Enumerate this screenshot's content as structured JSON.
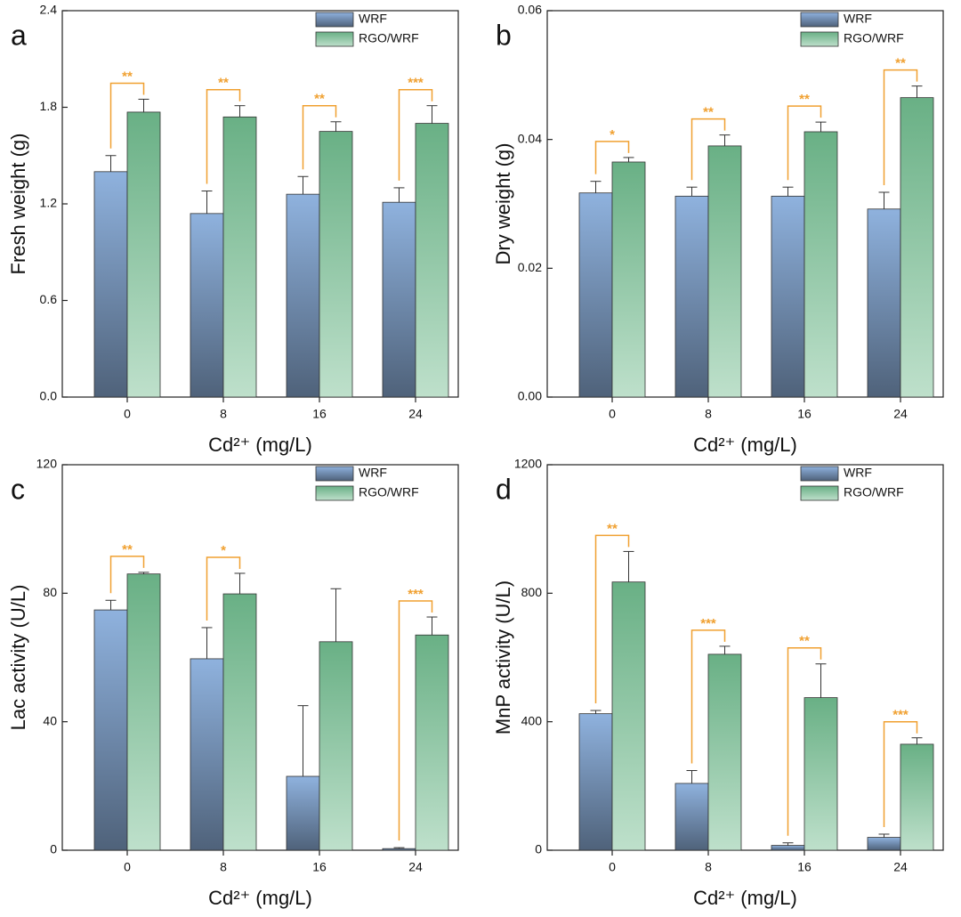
{
  "chart_data": [
    {
      "type": "bar",
      "panel_label": "a",
      "ylabel": "Fresh weight (g)",
      "xlabel": "Cd²⁺ (mg/L)",
      "categories": [
        "0",
        "8",
        "16",
        "24"
      ],
      "ylim": [
        0,
        2.4
      ],
      "yticks": [
        {
          "value": 0,
          "label": "0.0"
        },
        {
          "value": 0.6,
          "label": "0.6"
        },
        {
          "value": 1.2,
          "label": "1.2"
        },
        {
          "value": 1.8,
          "label": "1.8"
        },
        {
          "value": 2.4,
          "label": "2.4"
        }
      ],
      "series": [
        {
          "name": "WRF",
          "color": "#8fb2de",
          "values": [
            1.4,
            1.14,
            1.26,
            1.21
          ],
          "errors": [
            0.1,
            0.14,
            0.11,
            0.09
          ]
        },
        {
          "name": "RGO/WRF",
          "color": "#6fb98c",
          "values": [
            1.77,
            1.74,
            1.65,
            1.7
          ],
          "errors": [
            0.08,
            0.07,
            0.06,
            0.11
          ]
        }
      ],
      "significance": [
        "**",
        "**",
        "**",
        "***"
      ]
    },
    {
      "type": "bar",
      "panel_label": "b",
      "ylabel": "Dry weight (g)",
      "xlabel": "Cd²⁺ (mg/L)",
      "categories": [
        "0",
        "8",
        "16",
        "24"
      ],
      "ylim": [
        0,
        0.06
      ],
      "yticks": [
        {
          "value": 0,
          "label": "0.00"
        },
        {
          "value": 0.02,
          "label": "0.02"
        },
        {
          "value": 0.04,
          "label": "0.04"
        },
        {
          "value": 0.06,
          "label": "0.06"
        }
      ],
      "series": [
        {
          "name": "WRF",
          "color": "#8fb2de",
          "values": [
            0.0317,
            0.0312,
            0.0312,
            0.0292
          ],
          "errors": [
            0.0018,
            0.0014,
            0.0014,
            0.0026
          ]
        },
        {
          "name": "RGO/WRF",
          "color": "#6fb98c",
          "values": [
            0.0365,
            0.039,
            0.0412,
            0.0465
          ],
          "errors": [
            0.0007,
            0.0017,
            0.0015,
            0.0018
          ]
        }
      ],
      "significance": [
        "*",
        "**",
        "**",
        "**"
      ]
    },
    {
      "type": "bar",
      "panel_label": "c",
      "ylabel": "Lac activity (U/L)",
      "xlabel": "Cd²⁺ (mg/L)",
      "categories": [
        "0",
        "8",
        "16",
        "24"
      ],
      "ylim": [
        0,
        120
      ],
      "yticks": [
        0,
        40,
        80,
        120
      ],
      "series": [
        {
          "name": "WRF",
          "color": "#8fb2de",
          "values": [
            74.8,
            59.6,
            23,
            0.5
          ],
          "errors": [
            3,
            9.7,
            22,
            0.3
          ]
        },
        {
          "name": "RGO/WRF",
          "color": "#6fb98c",
          "values": [
            86,
            79.8,
            64.9,
            67
          ],
          "errors": [
            0.5,
            6.4,
            16.5,
            5.6
          ]
        }
      ],
      "significance": [
        "**",
        "*",
        null,
        "***"
      ]
    },
    {
      "type": "bar",
      "panel_label": "d",
      "ylabel": "MnP activity (U/L)",
      "xlabel": "Cd²⁺ (mg/L)",
      "categories": [
        "0",
        "8",
        "16",
        "24"
      ],
      "ylim": [
        0,
        1200
      ],
      "yticks": [
        0,
        400,
        800,
        1200
      ],
      "series": [
        {
          "name": "WRF",
          "color": "#8fb2de",
          "values": [
            425,
            208,
            15,
            40
          ],
          "errors": [
            10,
            40,
            8,
            10
          ]
        },
        {
          "name": "RGO/WRF",
          "color": "#6fb98c",
          "values": [
            835,
            610,
            475,
            330
          ],
          "errors": [
            95,
            25,
            105,
            20
          ]
        }
      ],
      "significance": [
        "**",
        "***",
        "**",
        "***"
      ]
    }
  ]
}
